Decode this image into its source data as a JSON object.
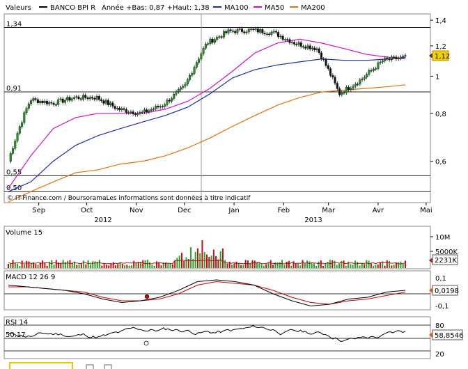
{
  "header": {
    "valeurs_label": "Valeurs",
    "series_name": "BANCO BPI R",
    "annee_label": "Année +Bas: 0,87 +Haut: 1,38",
    "ma100_label": "MA100",
    "ma50_label": "MA50",
    "ma200_label": "MA200"
  },
  "colors": {
    "ma100": "#1c2fa0",
    "ma50": "#d010c8",
    "ma200": "#e07010",
    "candle_up": "#1f9a1f",
    "candle_down": "#111111",
    "volume_up": "#27a327",
    "volume_down": "#c01010",
    "price_badge": "#f2d000",
    "macd_line": "#000000",
    "macd_signal": "#c00000"
  },
  "price_panel": {
    "credit": "© IT-Finance.com / BoursoramaLes informations sont données à titre indicatif",
    "ref_labels": [
      "1,34",
      "0,91",
      "0,55",
      "0,50"
    ],
    "ref_values": [
      1.34,
      0.91,
      0.55,
      0.5
    ],
    "y_ticks": [
      "1,4",
      "1,2",
      "1",
      "0,8",
      "0,6"
    ],
    "y_tick_values": [
      1.4,
      1.2,
      1.0,
      0.8,
      0.6
    ],
    "current_value": "1,12"
  },
  "x_axis": {
    "months": [
      "Sep",
      "Oct",
      "Nov",
      "Dec",
      "Jan",
      "Feb",
      "Mar",
      "Avr",
      "Mai"
    ],
    "years": [
      "2012",
      "2013"
    ]
  },
  "volume_panel": {
    "title": "Volume 15",
    "y_ticks": [
      "10M",
      "5000K"
    ],
    "current_value": "2231K"
  },
  "macd_panel": {
    "title": "MACD 12 26 9",
    "y_ticks": [
      "0,1",
      "-0,1"
    ],
    "current_value": "0,0198"
  },
  "rsi_panel": {
    "title": "RSI 14",
    "ref_label": "50.17",
    "y_ticks": [
      "80",
      "20"
    ],
    "current_value": "58,8546"
  },
  "chart_data": {
    "type": "line",
    "title": "BANCO BPI R",
    "xlabel": "",
    "ylabel": "",
    "ylim": [
      0.47,
      1.43
    ],
    "yscale": "log",
    "grid": false,
    "legend": "top",
    "x": [
      "2012-08-27",
      "2012-09-10",
      "2012-09-24",
      "2012-10-08",
      "2012-10-22",
      "2012-11-05",
      "2012-11-19",
      "2012-12-03",
      "2012-12-17",
      "2012-12-31",
      "2013-01-14",
      "2013-01-28",
      "2013-02-11",
      "2013-02-25",
      "2013-03-11",
      "2013-03-25",
      "2013-04-08",
      "2013-04-22",
      "2013-05-02"
    ],
    "series": [
      {
        "name": "BANCO BPI R",
        "values": [
          0.6,
          0.87,
          0.85,
          0.88,
          0.88,
          0.82,
          0.8,
          0.84,
          0.94,
          1.22,
          1.31,
          1.32,
          1.3,
          1.22,
          1.18,
          0.9,
          0.98,
          1.1,
          1.12
        ]
      },
      {
        "name": "MA100",
        "values": [
          0.5,
          0.53,
          0.6,
          0.66,
          0.7,
          0.73,
          0.76,
          0.79,
          0.83,
          0.9,
          0.99,
          1.04,
          1.07,
          1.09,
          1.11,
          1.1,
          1.1,
          1.11,
          1.12
        ]
      },
      {
        "name": "MA50",
        "values": [
          0.51,
          0.62,
          0.73,
          0.78,
          0.8,
          0.8,
          0.8,
          0.82,
          0.86,
          0.93,
          1.03,
          1.15,
          1.22,
          1.25,
          1.22,
          1.18,
          1.14,
          1.12,
          1.11
        ]
      },
      {
        "name": "MA200",
        "values": [
          0.47,
          0.5,
          0.53,
          0.56,
          0.57,
          0.59,
          0.6,
          0.62,
          0.65,
          0.69,
          0.74,
          0.79,
          0.84,
          0.88,
          0.91,
          0.92,
          0.93,
          0.94,
          0.95
        ]
      }
    ]
  }
}
